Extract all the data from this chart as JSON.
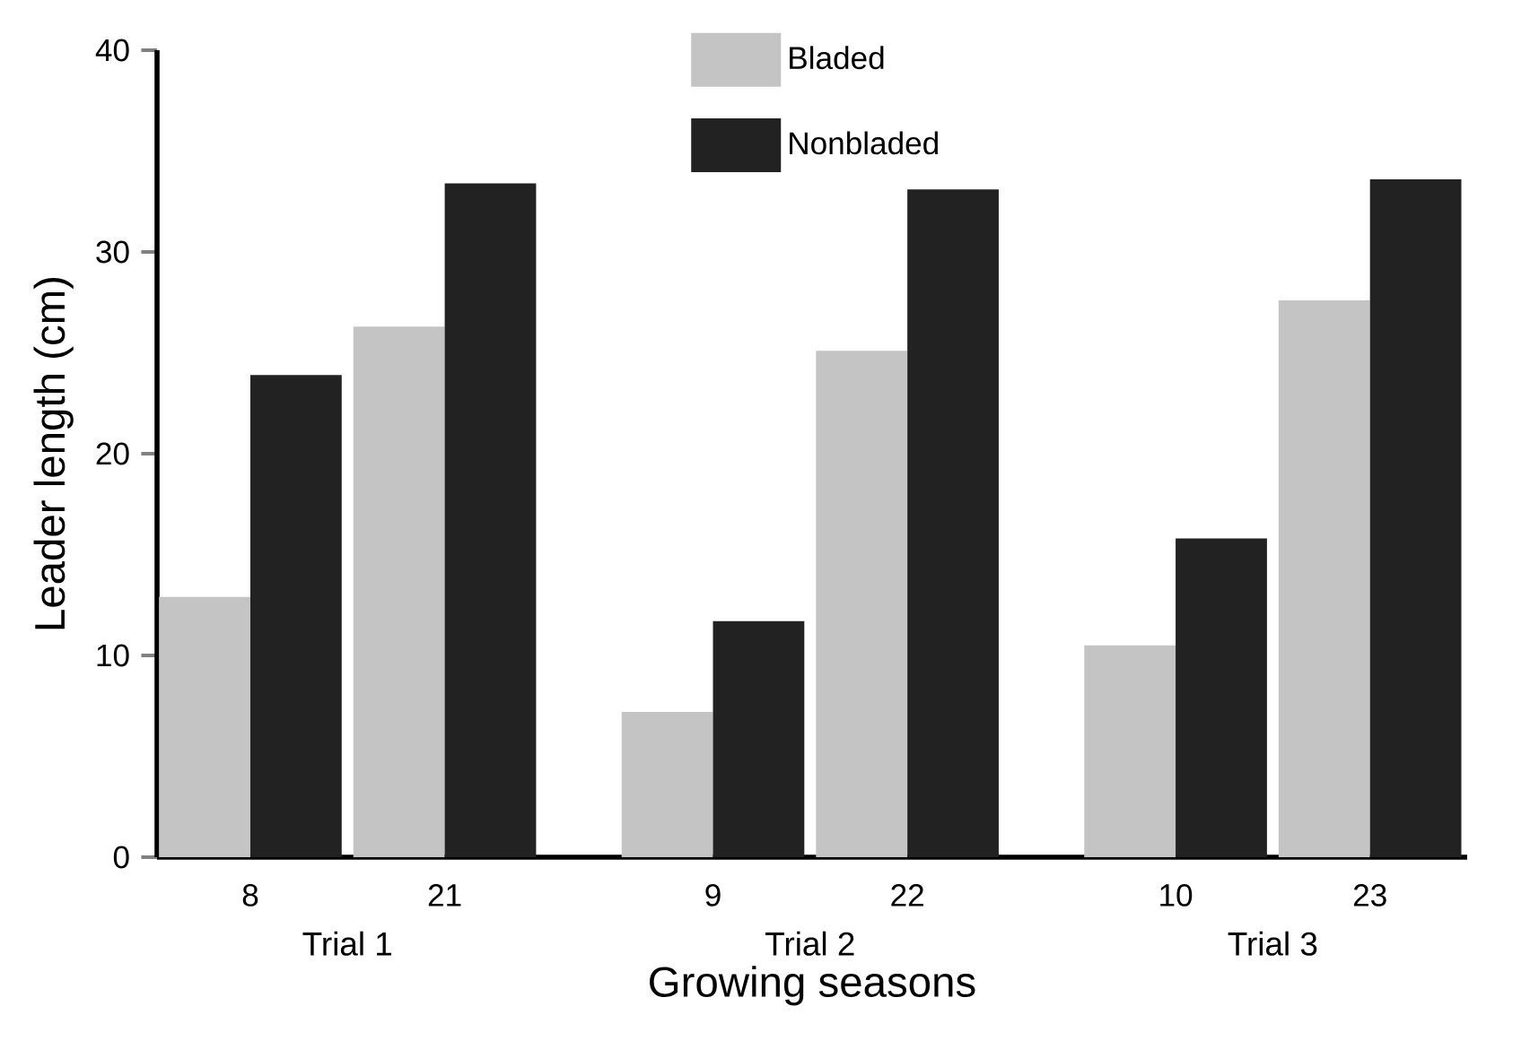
{
  "chart_data": {
    "type": "bar",
    "xlabel": "Growing seasons",
    "ylabel": "Leader length (cm)",
    "categories": [
      "8",
      "21",
      "9",
      "22",
      "10",
      "23"
    ],
    "series": [
      {
        "name": "Bladed",
        "color": "#c4c4c4",
        "values": [
          12.9,
          26.3,
          7.2,
          25.1,
          10.5,
          27.6
        ]
      },
      {
        "name": "Nonbladed",
        "color": "#222222",
        "values": [
          23.9,
          33.4,
          11.7,
          33.1,
          15.8,
          33.6
        ]
      }
    ],
    "annotations": [
      "Trial 1",
      "Trial 2",
      "Trial 3"
    ],
    "ylim": [
      0,
      40
    ],
    "yticks": [
      0,
      10,
      20,
      30,
      40
    ],
    "grid": false,
    "legend": "top"
  }
}
